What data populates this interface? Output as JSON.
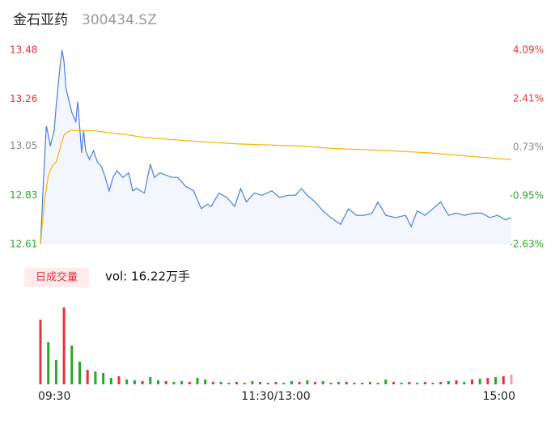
{
  "header": {
    "name": "金石亚药",
    "code": "300434.SZ"
  },
  "volume_label": "日成交量",
  "volume_text": "vol: 16.22万手",
  "chart_data": [
    {
      "type": "line",
      "xlim": [
        0,
        240
      ],
      "xticks": [
        {
          "value": 0,
          "label": "09:30"
        },
        {
          "value": 120,
          "label": "11:30/13:00"
        },
        {
          "value": 240,
          "label": "15:00"
        }
      ],
      "ylim": [
        12.61,
        13.48
      ],
      "yticks": [
        13.48,
        13.26,
        13.05,
        12.83,
        12.61
      ],
      "ytick_colors": [
        "#e8313b",
        "#e8313b",
        "#888888",
        "#2aa52a",
        "#2aa52a"
      ],
      "y2lim": [
        -2.63,
        4.09
      ],
      "y2ticks": [
        {
          "value": 4.09,
          "label": "4.09%"
        },
        {
          "value": 2.41,
          "label": "2.41%"
        },
        {
          "value": 0.73,
          "label": "0.73%"
        },
        {
          "value": -0.95,
          "label": "-0.95%"
        },
        {
          "value": -2.63,
          "label": "-2.63%"
        }
      ],
      "series": [
        {
          "color": "#4a7fe0",
          "x": [
            0,
            2,
            3,
            4,
            5,
            7,
            8,
            10,
            11,
            12,
            13,
            16,
            18,
            19,
            21,
            22,
            23,
            25,
            27,
            29,
            31,
            33,
            35,
            37,
            39,
            42,
            45,
            47,
            49,
            53,
            56,
            58,
            61,
            64,
            67,
            70,
            74,
            78,
            82,
            85,
            87,
            91,
            95,
            99,
            102,
            105,
            109,
            113,
            118,
            122,
            126,
            130,
            133,
            136,
            140,
            144,
            148,
            153,
            157,
            161,
            165,
            169,
            172,
            176,
            181,
            186,
            189,
            192,
            196,
            200,
            204,
            208,
            212,
            216,
            221,
            225,
            229,
            233,
            237,
            240
          ],
          "values": [
            12.61,
            12.98,
            13.14,
            13.1,
            13.05,
            13.12,
            13.23,
            13.41,
            13.48,
            13.43,
            13.31,
            13.2,
            13.16,
            13.25,
            13.02,
            13.12,
            13.03,
            12.99,
            13.03,
            12.98,
            12.96,
            12.91,
            12.85,
            12.91,
            12.94,
            12.91,
            12.93,
            12.85,
            12.86,
            12.84,
            12.97,
            12.91,
            12.93,
            12.92,
            12.91,
            12.91,
            12.87,
            12.85,
            12.77,
            12.79,
            12.78,
            12.84,
            12.82,
            12.78,
            12.86,
            12.8,
            12.84,
            12.83,
            12.85,
            12.82,
            12.83,
            12.83,
            12.86,
            12.83,
            12.8,
            12.76,
            12.73,
            12.7,
            12.77,
            12.74,
            12.74,
            12.75,
            12.8,
            12.74,
            12.73,
            12.74,
            12.69,
            12.76,
            12.74,
            12.77,
            12.8,
            12.74,
            12.75,
            12.74,
            12.75,
            12.75,
            12.73,
            12.74,
            12.72,
            12.73
          ]
        },
        {
          "color": "#f5b400",
          "x": [
            0,
            2,
            4,
            6,
            8,
            12,
            15,
            27,
            35,
            45,
            52,
            66,
            82,
            101,
            134,
            148,
            177,
            198,
            225,
            240
          ],
          "values": [
            12.61,
            12.8,
            12.92,
            12.96,
            12.98,
            13.1,
            13.12,
            13.12,
            13.11,
            13.1,
            13.09,
            13.08,
            13.07,
            13.06,
            13.05,
            13.04,
            13.03,
            13.02,
            13.0,
            12.99
          ]
        }
      ]
    },
    {
      "type": "bar",
      "xlim": [
        0,
        240
      ],
      "ylim": [
        0,
        100
      ],
      "x": [
        0,
        4,
        8,
        12,
        16,
        20,
        24,
        28,
        32,
        36,
        40,
        44,
        48,
        52,
        56,
        60,
        64,
        68,
        72,
        76,
        80,
        84,
        88,
        92,
        96,
        100,
        104,
        108,
        112,
        116,
        120,
        124,
        128,
        132,
        136,
        140,
        144,
        148,
        152,
        156,
        160,
        164,
        168,
        172,
        176,
        180,
        184,
        188,
        192,
        196,
        200,
        204,
        208,
        212,
        216,
        220,
        224,
        228,
        232,
        236,
        240
      ],
      "values": [
        80,
        52,
        30,
        95,
        48,
        28,
        18,
        16,
        14,
        8,
        10,
        6,
        5,
        4,
        9,
        5,
        4,
        3,
        4,
        3,
        8,
        6,
        3,
        3,
        2,
        3,
        2,
        4,
        3,
        2,
        3,
        2,
        4,
        3,
        5,
        3,
        4,
        2,
        3,
        3,
        2,
        2,
        3,
        2,
        6,
        3,
        2,
        3,
        2,
        3,
        2,
        3,
        4,
        5,
        3,
        6,
        7,
        8,
        9,
        10,
        12
      ],
      "colors": [
        "#e8313b",
        "#2aa52a",
        "#2aa52a",
        "#e8313b",
        "#2aa52a",
        "#2aa52a",
        "#e8313b",
        "#2aa52a",
        "#2aa52a",
        "#2aa52a",
        "#e8313b",
        "#2aa52a",
        "#2aa52a",
        "#e8313b",
        "#2aa52a",
        "#2aa52a",
        "#e8313b",
        "#2aa52a",
        "#2aa52a",
        "#e8313b",
        "#2aa52a",
        "#2aa52a",
        "#e8313b",
        "#2aa52a",
        "#2aa52a",
        "#e8313b",
        "#2aa52a",
        "#2aa52a",
        "#e8313b",
        "#2aa52a",
        "#e8313b",
        "#2aa52a",
        "#2aa52a",
        "#e8313b",
        "#2aa52a",
        "#e8313b",
        "#2aa52a",
        "#e8313b",
        "#2aa52a",
        "#e8313b",
        "#2aa52a",
        "#e8313b",
        "#2aa52a",
        "#e8313b",
        "#2aa52a",
        "#e8313b",
        "#2aa52a",
        "#e8313b",
        "#2aa52a",
        "#e8313b",
        "#2aa52a",
        "#e8313b",
        "#2aa52a",
        "#e8313b",
        "#2aa52a",
        "#e8313b",
        "#2aa52a",
        "#e8313b",
        "#2aa52a",
        "#e8313b",
        "#f4a0a4"
      ]
    }
  ]
}
